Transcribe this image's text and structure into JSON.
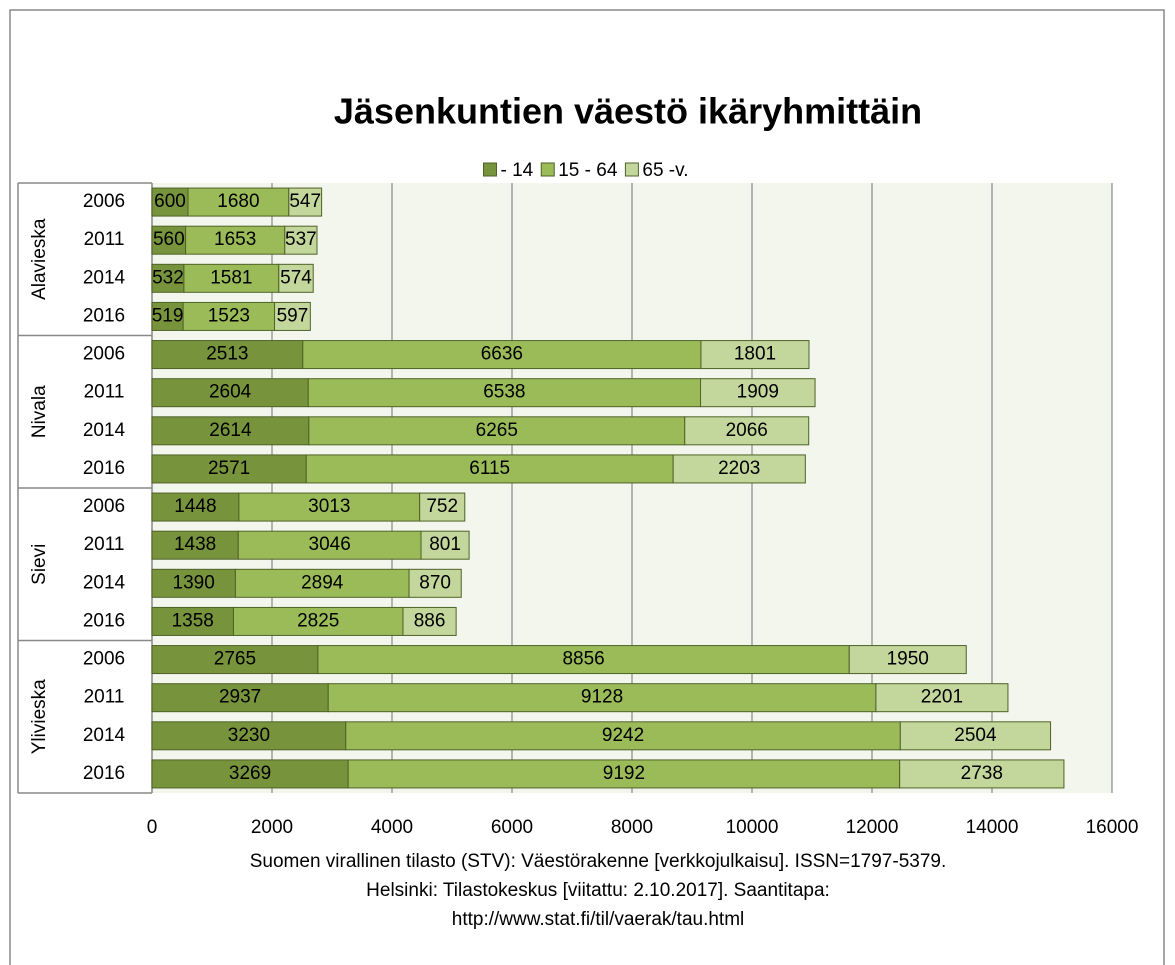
{
  "chart_data": {
    "type": "stacked-bar-horizontal",
    "title": "Jäsenkuntien väestö ikäryhmittäin",
    "groups": [
      {
        "name": "Alavieska",
        "categories": [
          "2006",
          "2011",
          "2014",
          "2016"
        ]
      },
      {
        "name": "Nivala",
        "categories": [
          "2006",
          "2011",
          "2014",
          "2016"
        ]
      },
      {
        "name": "Sievi",
        "categories": [
          "2006",
          "2011",
          "2014",
          "2016"
        ]
      },
      {
        "name": "Ylivieska",
        "categories": [
          "2006",
          "2011",
          "2014",
          "2016"
        ]
      }
    ],
    "series": [
      {
        "name": "- 14",
        "color": "#77933c",
        "values": [
          600,
          560,
          532,
          519,
          2513,
          2604,
          2614,
          2571,
          1448,
          1438,
          1390,
          1358,
          2765,
          2937,
          3230,
          3269
        ]
      },
      {
        "name": "15 - 64",
        "color": "#9bbb59",
        "values": [
          1680,
          1653,
          1581,
          1523,
          6636,
          6538,
          6265,
          6115,
          3013,
          3046,
          2894,
          2825,
          8856,
          9128,
          9242,
          9192
        ]
      },
      {
        "name": "65 -v.",
        "color": "#c3d69b",
        "values": [
          547,
          537,
          574,
          597,
          1801,
          1909,
          2066,
          2203,
          752,
          801,
          870,
          886,
          1950,
          2201,
          2504,
          2738
        ]
      }
    ],
    "xlim": [
      0,
      16000
    ],
    "xticks": [
      0,
      2000,
      4000,
      6000,
      8000,
      10000,
      12000,
      14000,
      16000
    ],
    "grid": true,
    "legend": "top",
    "note": [
      "Suomen virallinen tilasto (STV): Väestörakenne [verkkojulkaisu]. ISSN=1797-5379.",
      "Helsinki: Tilastokeskus [viitattu: 2.10.2017]. Saantitapa:",
      "http://www.stat.fi/til/vaerak/tau.html"
    ]
  }
}
